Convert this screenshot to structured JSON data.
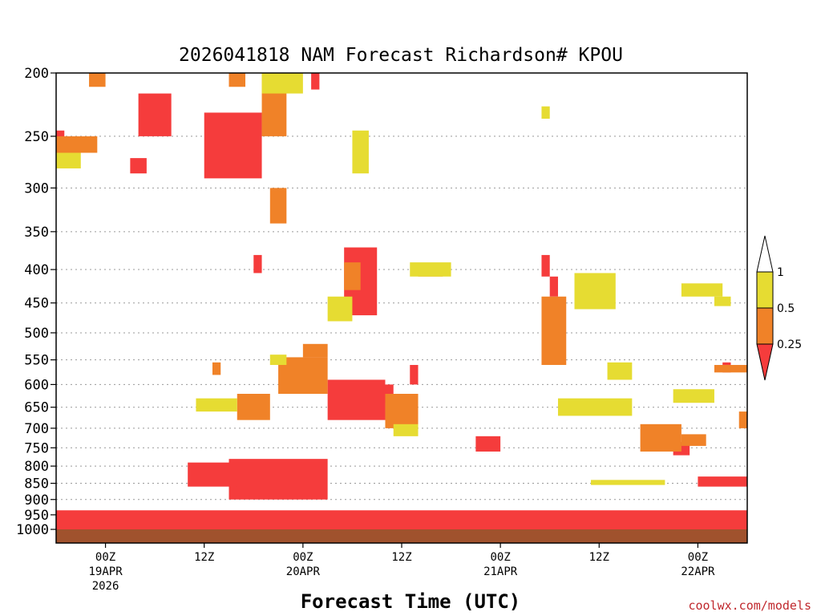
{
  "chart_data": {
    "type": "heatmap",
    "title": "2026041818 NAM Forecast Richardson# KPOU",
    "xlabel": "Forecast Time (UTC)",
    "ylabel": "",
    "credit": "coolwx.com/models",
    "y_axis": {
      "unit": "hPa",
      "range": [
        1000,
        200
      ],
      "scale": "log-pressure",
      "ticks": [
        200,
        250,
        300,
        350,
        400,
        450,
        500,
        550,
        600,
        650,
        700,
        750,
        800,
        850,
        900,
        950,
        1000
      ],
      "tick_labels": [
        "200",
        "250",
        "300",
        "350",
        "400",
        "450",
        "500",
        "550",
        "600",
        "650",
        "700",
        "750",
        "800",
        "850",
        "900",
        "950",
        "1000"
      ],
      "gridlines": true
    },
    "x_axis": {
      "unit": "forecast hours from 2026041818",
      "range": [
        0,
        84
      ],
      "ticks": [
        {
          "hour": 6,
          "labels": [
            "00Z",
            "19APR",
            "2026"
          ]
        },
        {
          "hour": 18,
          "labels": [
            "12Z"
          ]
        },
        {
          "hour": 30,
          "labels": [
            "00Z",
            "20APR"
          ]
        },
        {
          "hour": 42,
          "labels": [
            "12Z"
          ]
        },
        {
          "hour": 54,
          "labels": [
            "00Z",
            "21APR"
          ]
        },
        {
          "hour": 66,
          "labels": [
            "12Z"
          ]
        },
        {
          "hour": 78,
          "labels": [
            "00Z",
            "22APR"
          ]
        }
      ]
    },
    "legend": {
      "placement": "right",
      "bins": [
        {
          "range": "< 0.25",
          "color": "#f53c3c"
        },
        {
          "range": "0.25 - 0.5",
          "color": "#f08228"
        },
        {
          "range": "0.5 - 1",
          "color": "#e6dc32"
        },
        {
          "range": "> 1",
          "color": "#ffffff"
        }
      ],
      "labels": [
        "1",
        "0.5",
        "0.25"
      ]
    },
    "ground": {
      "pressure_hpa": 1000,
      "color": "#a0522d"
    },
    "series": [
      {
        "name": "Ri < 0.25",
        "color": "#f53c3c",
        "regions": [
          {
            "t": [
              0,
              84
            ],
            "p": [
              935,
              1000
            ]
          },
          {
            "t": [
              18,
              25
            ],
            "p": [
              230,
              290
            ]
          },
          {
            "t": [
              10,
              14
            ],
            "p": [
              215,
              250
            ]
          },
          {
            "t": [
              9,
              11
            ],
            "p": [
              270,
              285
            ]
          },
          {
            "t": [
              0,
              1
            ],
            "p": [
              245,
              262
            ]
          },
          {
            "t": [
              21,
              33
            ],
            "p": [
              780,
              900
            ]
          },
          {
            "t": [
              16,
              22
            ],
            "p": [
              790,
              860
            ]
          },
          {
            "t": [
              35,
              39
            ],
            "p": [
              370,
              470
            ]
          },
          {
            "t": [
              33,
              40
            ],
            "p": [
              590,
              680
            ]
          },
          {
            "t": [
              37,
              41
            ],
            "p": [
              600,
              640
            ]
          },
          {
            "t": [
              43,
              44
            ],
            "p": [
              560,
              600
            ]
          },
          {
            "t": [
              51,
              54
            ],
            "p": [
              720,
              760
            ]
          },
          {
            "t": [
              59,
              60
            ],
            "p": [
              380,
              410
            ]
          },
          {
            "t": [
              60,
              61
            ],
            "p": [
              410,
              440
            ]
          },
          {
            "t": [
              75,
              77
            ],
            "p": [
              735,
              770
            ]
          },
          {
            "t": [
              81,
              82
            ],
            "p": [
              555,
              575
            ]
          },
          {
            "t": [
              78,
              84
            ],
            "p": [
              830,
              860
            ]
          },
          {
            "t": [
              24,
              25
            ],
            "p": [
              380,
              405
            ]
          },
          {
            "t": [
              31,
              32
            ],
            "p": [
              200,
              212
            ]
          }
        ]
      },
      {
        "name": "0.25 <= Ri < 0.5",
        "color": "#f08228",
        "regions": [
          {
            "t": [
              0,
              5
            ],
            "p": [
              250,
              265
            ]
          },
          {
            "t": [
              4,
              6
            ],
            "p": [
              200,
              210
            ]
          },
          {
            "t": [
              21,
              23
            ],
            "p": [
              200,
              210
            ]
          },
          {
            "t": [
              25,
              28
            ],
            "p": [
              200,
              250
            ]
          },
          {
            "t": [
              26,
              28
            ],
            "p": [
              300,
              340
            ]
          },
          {
            "t": [
              27,
              33
            ],
            "p": [
              545,
              620
            ]
          },
          {
            "t": [
              30,
              33
            ],
            "p": [
              520,
              545
            ]
          },
          {
            "t": [
              22,
              26
            ],
            "p": [
              620,
              680
            ]
          },
          {
            "t": [
              35,
              37
            ],
            "p": [
              390,
              430
            ]
          },
          {
            "t": [
              44,
              47
            ],
            "p": [
              395,
              410
            ]
          },
          {
            "t": [
              40,
              44
            ],
            "p": [
              620,
              700
            ]
          },
          {
            "t": [
              59,
              62
            ],
            "p": [
              440,
              560
            ]
          },
          {
            "t": [
              71,
              76
            ],
            "p": [
              690,
              760
            ]
          },
          {
            "t": [
              76,
              79
            ],
            "p": [
              715,
              745
            ]
          },
          {
            "t": [
              80,
              84
            ],
            "p": [
              560,
              575
            ]
          },
          {
            "t": [
              83,
              84
            ],
            "p": [
              660,
              700
            ]
          },
          {
            "t": [
              19,
              20
            ],
            "p": [
              555,
              580
            ]
          }
        ]
      },
      {
        "name": "0.5 <= Ri < 1",
        "color": "#e6dc32",
        "regions": [
          {
            "t": [
              25,
              30
            ],
            "p": [
              200,
              215
            ]
          },
          {
            "t": [
              36,
              38
            ],
            "p": [
              245,
              285
            ]
          },
          {
            "t": [
              43,
              48
            ],
            "p": [
              390,
              410
            ]
          },
          {
            "t": [
              63,
              68
            ],
            "p": [
              405,
              460
            ]
          },
          {
            "t": [
              61,
              70
            ],
            "p": [
              630,
              670
            ]
          },
          {
            "t": [
              67,
              70
            ],
            "p": [
              555,
              590
            ]
          },
          {
            "t": [
              75,
              80
            ],
            "p": [
              610,
              640
            ]
          },
          {
            "t": [
              76,
              81
            ],
            "p": [
              420,
              440
            ]
          },
          {
            "t": [
              80,
              82
            ],
            "p": [
              440,
              455
            ]
          },
          {
            "t": [
              0,
              3
            ],
            "p": [
              265,
              280
            ]
          },
          {
            "t": [
              17,
              22
            ],
            "p": [
              630,
              660
            ]
          },
          {
            "t": [
              33,
              36
            ],
            "p": [
              440,
              480
            ]
          },
          {
            "t": [
              26,
              28
            ],
            "p": [
              540,
              560
            ]
          },
          {
            "t": [
              41,
              44
            ],
            "p": [
              690,
              720
            ]
          },
          {
            "t": [
              65,
              74
            ],
            "p": [
              840,
              855
            ]
          },
          {
            "t": [
              59,
              60
            ],
            "p": [
              225,
              235
            ]
          }
        ]
      }
    ]
  }
}
